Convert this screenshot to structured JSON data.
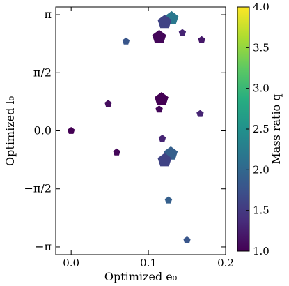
{
  "chart_data": {
    "type": "scatter",
    "xlabel": "Optimized e₀",
    "ylabel": "Optimized l₀",
    "xlim": [
      -0.02,
      0.2
    ],
    "ylim": [
      -3.35,
      3.35
    ],
    "x_ticks": [
      {
        "value": 0.0,
        "label": "0.0"
      },
      {
        "value": 0.1,
        "label": "0.1"
      },
      {
        "value": 0.2,
        "label": "0.2"
      }
    ],
    "y_ticks": [
      {
        "value": 3.14159,
        "label": "π"
      },
      {
        "value": 1.5708,
        "label": "π/2"
      },
      {
        "value": 0.0,
        "label": "0.0"
      },
      {
        "value": -1.5708,
        "label": "−π/2"
      },
      {
        "value": -3.14159,
        "label": "−π"
      }
    ],
    "marker": "pentagon",
    "grid": false,
    "colorbar": {
      "label": "Mass ratio q",
      "range": [
        1.0,
        4.0
      ],
      "colormap": "viridis",
      "ticks": [
        "1.0",
        "1.5",
        "2.0",
        "2.5",
        "3.0",
        "3.5",
        "4.0"
      ],
      "tick_values": [
        1.0,
        1.5,
        2.0,
        2.5,
        3.0,
        3.5,
        4.0
      ]
    },
    "points": [
      {
        "x": 0.13,
        "y": 3.04,
        "q": 2.2,
        "size": "large"
      },
      {
        "x": 0.121,
        "y": 2.94,
        "q": 1.6,
        "size": "large"
      },
      {
        "x": 0.144,
        "y": 2.65,
        "q": 1.3,
        "size": "small"
      },
      {
        "x": 0.114,
        "y": 2.53,
        "q": 1.05,
        "size": "large"
      },
      {
        "x": 0.071,
        "y": 2.42,
        "q": 1.8,
        "size": "small"
      },
      {
        "x": 0.169,
        "y": 2.46,
        "q": 1.2,
        "size": "small"
      },
      {
        "x": 0.117,
        "y": 0.85,
        "q": 1.0,
        "size": "large"
      },
      {
        "x": 0.048,
        "y": 0.73,
        "q": 1.1,
        "size": "small"
      },
      {
        "x": 0.114,
        "y": 0.58,
        "q": 1.05,
        "size": "small"
      },
      {
        "x": 0.167,
        "y": 0.46,
        "q": 1.3,
        "size": "small"
      },
      {
        "x": 0.0,
        "y": 0.0,
        "q": 1.0,
        "size": "small"
      },
      {
        "x": 0.118,
        "y": -0.21,
        "q": 1.3,
        "size": "small"
      },
      {
        "x": 0.059,
        "y": -0.58,
        "q": 1.05,
        "size": "small"
      },
      {
        "x": 0.129,
        "y": -0.62,
        "q": 1.9,
        "size": "large"
      },
      {
        "x": 0.121,
        "y": -0.8,
        "q": 1.6,
        "size": "large"
      },
      {
        "x": 0.126,
        "y": -1.88,
        "q": 1.9,
        "size": "small"
      },
      {
        "x": 0.15,
        "y": -2.96,
        "q": 1.8,
        "size": "small"
      }
    ]
  }
}
